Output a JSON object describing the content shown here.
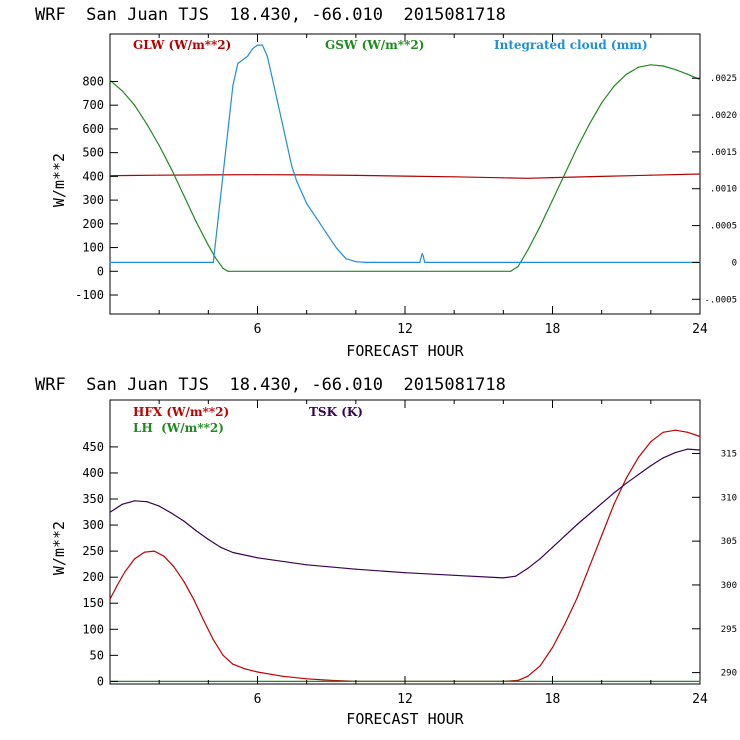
{
  "colors": {
    "glw": "#b30000",
    "gsw": "#1f8a1f",
    "cloud": "#1e8fd8",
    "hfx": "#c00000",
    "lh": "#1f8a1f",
    "tsk": "#3a0055"
  },
  "chart_data": [
    {
      "type": "line",
      "title": "WRF  San Juan TJS  18.430, -66.010  2015081718",
      "xlabel": "FORECAST HOUR",
      "ylabel": "W/m**2",
      "xlim": [
        0,
        24
      ],
      "ylim": [
        -180,
        1000
      ],
      "x_ticks": [
        "6",
        "12",
        "18",
        "24"
      ],
      "y_ticks": [
        "-100",
        "0",
        "100",
        "200",
        "300",
        "400",
        "500",
        "600",
        "700",
        "800"
      ],
      "y2lim": [
        -0.0007,
        0.0031
      ],
      "y2_ticks": [
        "-.0005",
        "0",
        ".0005",
        ".0010",
        ".0015",
        ".0020",
        ".0025"
      ],
      "legend": {
        "glw": "GLW (W/m**2)",
        "gsw": "GSW (W/m**2)",
        "cloud": "Integrated cloud (mm)"
      },
      "series": [
        {
          "name": "GLW (W/m**2)",
          "axis": "left",
          "x": [
            0,
            2,
            4,
            6,
            8,
            10,
            12,
            14,
            16,
            17,
            18,
            20,
            22,
            24
          ],
          "values": [
            403,
            405,
            406,
            407,
            406,
            404,
            401,
            398,
            394,
            392,
            395,
            400,
            405,
            410
          ]
        },
        {
          "name": "GSW (W/m**2)",
          "axis": "left",
          "x": [
            0,
            0.5,
            1,
            1.5,
            2,
            2.5,
            3,
            3.5,
            4,
            4.3,
            4.6,
            4.8,
            16.3,
            16.6,
            17,
            17.5,
            18,
            18.5,
            19,
            19.5,
            20,
            20.5,
            21,
            21.5,
            22,
            22.5,
            23,
            23.5,
            24
          ],
          "values": [
            805,
            760,
            700,
            620,
            530,
            430,
            320,
            210,
            110,
            55,
            12,
            0,
            0,
            20,
            90,
            190,
            300,
            410,
            520,
            620,
            710,
            780,
            830,
            860,
            870,
            865,
            850,
            830,
            808
          ],
          "floor": {
            "from": 4.8,
            "to": 16.3,
            "value": 0
          }
        },
        {
          "name": "Integrated cloud (mm)",
          "axis": "right",
          "x": [
            0,
            4.2,
            4.4,
            4.6,
            4.8,
            5.0,
            5.2,
            5.4,
            5.6,
            5.8,
            6.0,
            6.2,
            6.4,
            6.6,
            6.8,
            7.0,
            7.2,
            7.4,
            7.6,
            8.0,
            8.4,
            8.8,
            9.2,
            9.6,
            10.0,
            10.4,
            10.8,
            12.6,
            12.7,
            12.75,
            12.8,
            12.9,
            24
          ],
          "values": [
            0,
            0,
            0.0006,
            0.0012,
            0.0018,
            0.0024,
            0.0027,
            0.00275,
            0.0028,
            0.0029,
            0.00295,
            0.00295,
            0.0028,
            0.0025,
            0.0022,
            0.0019,
            0.0016,
            0.0013,
            0.0011,
            0.0008,
            0.0006,
            0.0004,
            0.0002,
            5e-05,
            1e-05,
            0,
            0,
            0,
            0.00012,
            8e-05,
            0,
            0,
            0
          ]
        }
      ]
    },
    {
      "type": "line",
      "title": "WRF  San Juan TJS  18.430, -66.010  2015081718",
      "xlabel": "FORECAST HOUR",
      "ylabel": "W/m**2",
      "xlim": [
        0,
        24
      ],
      "ylim": [
        -5,
        540
      ],
      "x_ticks": [
        "6",
        "12",
        "18",
        "24"
      ],
      "y_ticks": [
        "0",
        "50",
        "100",
        "150",
        "200",
        "250",
        "300",
        "350",
        "400",
        "450"
      ],
      "y2lim": [
        288.7,
        321.1
      ],
      "y2_ticks": [
        "290",
        "295",
        "300",
        "305",
        "310",
        "315"
      ],
      "legend": {
        "hfx": "HFX (W/m**2)",
        "lh": "LH  (W/m**2)",
        "tsk": "TSK (K)"
      },
      "series": [
        {
          "name": "HFX (W/m**2)",
          "axis": "left",
          "x": [
            0,
            0.3,
            0.6,
            1,
            1.4,
            1.8,
            2.2,
            2.6,
            3,
            3.4,
            3.8,
            4.2,
            4.6,
            5,
            5.5,
            6,
            7,
            8,
            9,
            10,
            12,
            14,
            16,
            16.6,
            17,
            17.5,
            18,
            18.5,
            19,
            19.5,
            20,
            20.5,
            21,
            21.5,
            22,
            22.5,
            23,
            23.5,
            24
          ],
          "values": [
            158,
            185,
            210,
            235,
            248,
            250,
            240,
            220,
            192,
            158,
            118,
            80,
            50,
            33,
            24,
            18,
            10,
            5,
            2,
            0,
            0,
            0,
            0,
            2,
            10,
            30,
            65,
            110,
            160,
            220,
            280,
            340,
            390,
            430,
            460,
            478,
            482,
            478,
            470
          ]
        },
        {
          "name": "LH  (W/m**2)",
          "axis": "left",
          "x": [
            0,
            24
          ],
          "values": [
            0,
            0
          ]
        },
        {
          "name": "TSK (K)",
          "axis": "right",
          "x": [
            0,
            0.5,
            1,
            1.5,
            2,
            2.5,
            3,
            3.5,
            4,
            4.5,
            5,
            6,
            8,
            10,
            12,
            14,
            16,
            16.5,
            17,
            17.5,
            18,
            18.5,
            19,
            19.5,
            20,
            20.5,
            21,
            21.5,
            22,
            22.5,
            23,
            23.5,
            24
          ],
          "values": [
            308.3,
            309.2,
            309.6,
            309.5,
            309.0,
            308.2,
            307.3,
            306.2,
            305.2,
            304.3,
            303.7,
            303.1,
            302.3,
            301.8,
            301.4,
            301.1,
            300.8,
            301.0,
            301.9,
            303.0,
            304.3,
            305.6,
            306.9,
            308.1,
            309.3,
            310.5,
            311.6,
            312.6,
            313.6,
            314.5,
            315.1,
            315.5,
            315.4
          ]
        }
      ]
    }
  ]
}
